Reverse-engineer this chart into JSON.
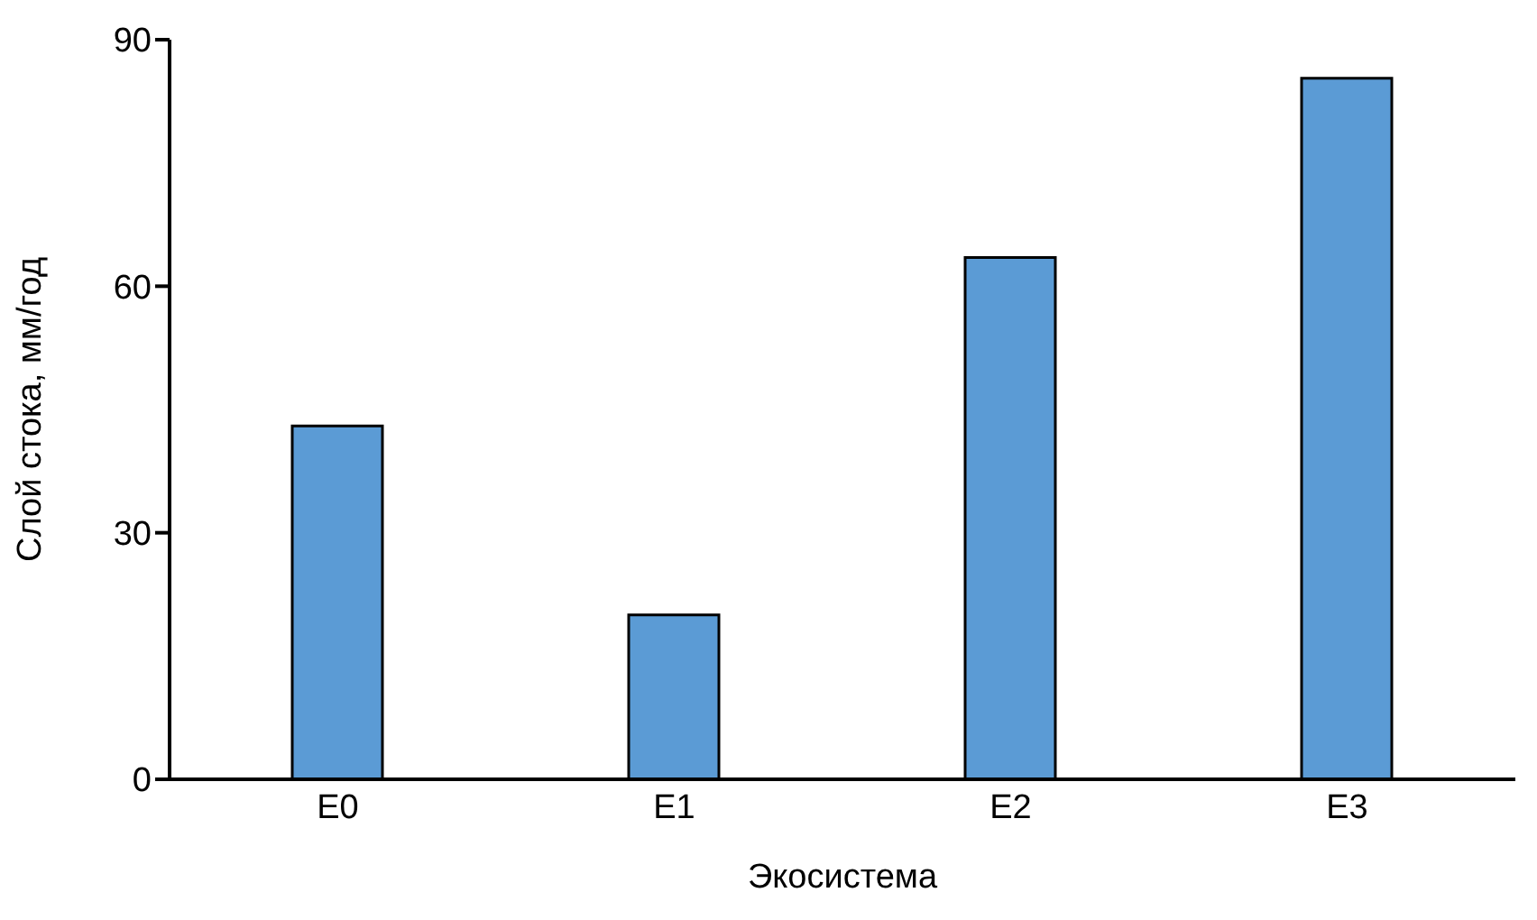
{
  "chart_data": {
    "type": "bar",
    "xlabel": "Экосистема",
    "ylabel": "Слой стока, мм/год",
    "categories": [
      "E0",
      "E1",
      "E2",
      "E3"
    ],
    "values": [
      43,
      20,
      63.5,
      85.3
    ],
    "color": "#5b9bd5",
    "ylim": [
      0,
      90
    ],
    "yticks": [
      0,
      30,
      60,
      90
    ],
    "grid": false
  }
}
